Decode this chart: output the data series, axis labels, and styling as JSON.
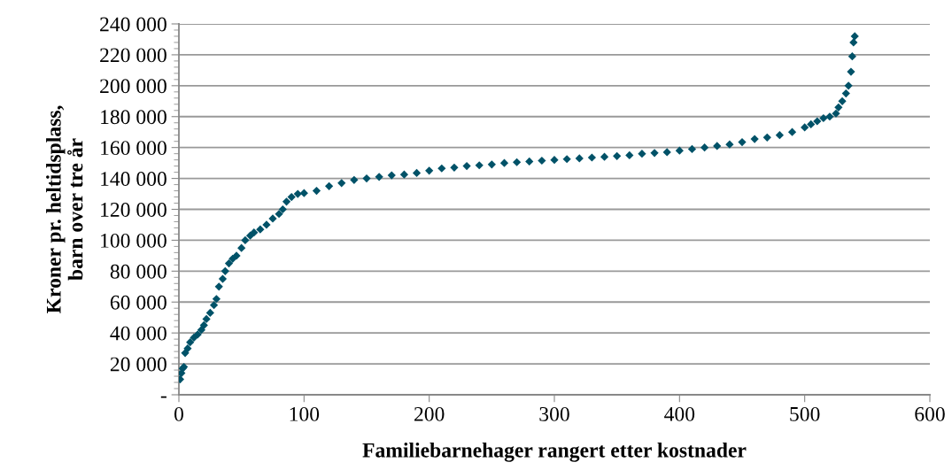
{
  "chart_data": {
    "type": "scatter",
    "xlabel": "Familiebarnehager rangert etter kostnader",
    "ylabel": "Kroner pr. heltidsplass,\nbarn over tre år",
    "x": [
      1,
      2,
      3,
      4,
      5,
      7,
      9,
      12,
      15,
      18,
      20,
      22,
      25,
      28,
      30,
      32,
      35,
      37,
      40,
      43,
      46,
      50,
      53,
      57,
      60,
      65,
      70,
      75,
      80,
      83,
      86,
      90,
      95,
      100,
      110,
      120,
      130,
      140,
      150,
      160,
      170,
      180,
      190,
      200,
      210,
      220,
      230,
      240,
      250,
      260,
      270,
      280,
      290,
      300,
      310,
      320,
      330,
      340,
      350,
      360,
      370,
      380,
      390,
      400,
      410,
      420,
      430,
      440,
      450,
      460,
      470,
      480,
      490,
      500,
      505,
      510,
      515,
      520,
      525,
      527,
      530,
      533,
      535,
      537,
      538,
      539,
      540
    ],
    "series": [
      {
        "color": "#005268",
        "values": [
          10000,
          14000,
          17000,
          18000,
          27000,
          30000,
          34000,
          37000,
          39000,
          42000,
          45000,
          49000,
          53000,
          58000,
          62000,
          70000,
          75000,
          80000,
          85000,
          88000,
          90000,
          95000,
          100000,
          103000,
          105000,
          107000,
          110000,
          114000,
          117000,
          120000,
          125000,
          128000,
          130000,
          130500,
          132000,
          135000,
          137000,
          139000,
          140000,
          141000,
          142000,
          142500,
          143500,
          145000,
          146500,
          147000,
          148000,
          148500,
          149000,
          150000,
          150500,
          151000,
          151500,
          152000,
          152500,
          153000,
          153500,
          154000,
          154500,
          155000,
          156000,
          156500,
          157000,
          158000,
          159000,
          160000,
          161000,
          162000,
          163500,
          165500,
          166500,
          168000,
          170000,
          173000,
          175000,
          177000,
          179000,
          180000,
          182000,
          186000,
          190000,
          195000,
          200000,
          209000,
          219000,
          228000,
          232000
        ]
      }
    ],
    "marker": "diamond",
    "xlim": [
      0,
      600
    ],
    "xticks": [
      0,
      100,
      200,
      300,
      400,
      500,
      600
    ],
    "ylim": [
      0,
      240000
    ],
    "yticks": [
      {
        "value": 0,
        "label": "-"
      },
      {
        "value": 20000,
        "label": "20 000"
      },
      {
        "value": 40000,
        "label": "40 000"
      },
      {
        "value": 60000,
        "label": "60 000"
      },
      {
        "value": 80000,
        "label": "80 000"
      },
      {
        "value": 100000,
        "label": "100 000"
      },
      {
        "value": 120000,
        "label": "120 000"
      },
      {
        "value": 140000,
        "label": "140 000"
      },
      {
        "value": 160000,
        "label": "160 000"
      },
      {
        "value": 180000,
        "label": "180 000"
      },
      {
        "value": 200000,
        "label": "200 000"
      },
      {
        "value": 220000,
        "label": "220 000"
      },
      {
        "value": 240000,
        "label": "240 000"
      }
    ],
    "grid": "y"
  }
}
